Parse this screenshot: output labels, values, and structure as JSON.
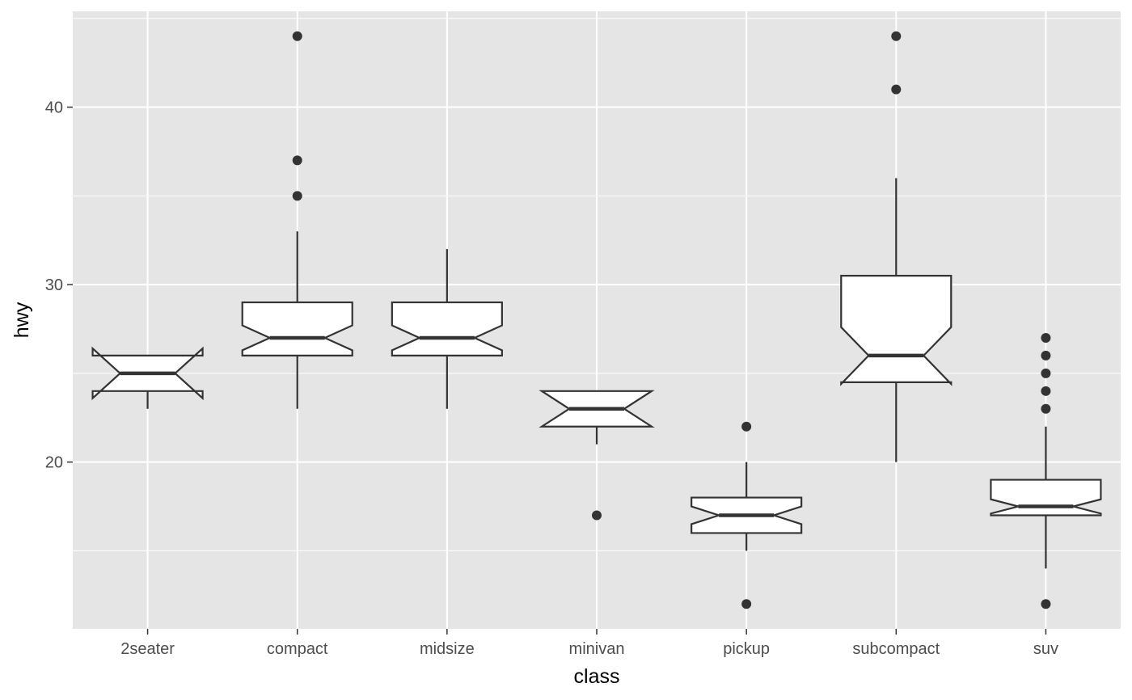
{
  "chart_data": {
    "type": "boxplot",
    "notched": true,
    "xlabel": "class",
    "ylabel": "hwy",
    "ylim": [
      10.6,
      45.4
    ],
    "yticks": [
      20,
      30,
      40
    ],
    "grid": true,
    "colors": {
      "panel": "#e5e5e5",
      "grid": "#ffffff",
      "box_fill": "#ffffff",
      "box_line": "#333333",
      "outlier": "#333333",
      "tick": "#4d4d4d"
    },
    "categories": [
      "2seater",
      "compact",
      "midsize",
      "minivan",
      "pickup",
      "subcompact",
      "suv"
    ],
    "boxes": [
      {
        "category": "2seater",
        "lower_whisker": 23,
        "q1": 24,
        "median": 25,
        "q3": 26,
        "upper_whisker": 26,
        "notch_low": 23.6,
        "notch_high": 26.4,
        "outliers": []
      },
      {
        "category": "compact",
        "lower_whisker": 23,
        "q1": 26,
        "median": 27,
        "q3": 29,
        "upper_whisker": 33,
        "notch_low": 26.3,
        "notch_high": 27.7,
        "outliers": [
          44,
          37,
          35
        ]
      },
      {
        "category": "midsize",
        "lower_whisker": 23,
        "q1": 26,
        "median": 27,
        "q3": 29,
        "upper_whisker": 32,
        "notch_low": 26.3,
        "notch_high": 27.7,
        "outliers": []
      },
      {
        "category": "minivan",
        "lower_whisker": 21,
        "q1": 22,
        "median": 23,
        "q3": 24,
        "upper_whisker": 24,
        "notch_low": 22.0,
        "notch_high": 24.0,
        "outliers": [
          17
        ]
      },
      {
        "category": "pickup",
        "lower_whisker": 15,
        "q1": 16,
        "median": 17,
        "q3": 18,
        "upper_whisker": 20,
        "notch_low": 16.5,
        "notch_high": 17.5,
        "outliers": [
          22,
          12
        ]
      },
      {
        "category": "subcompact",
        "lower_whisker": 20,
        "q1": 24.5,
        "median": 26,
        "q3": 30.5,
        "upper_whisker": 36,
        "notch_low": 24.4,
        "notch_high": 27.6,
        "outliers": [
          44,
          41
        ]
      },
      {
        "category": "suv",
        "lower_whisker": 14,
        "q1": 17,
        "median": 17.5,
        "q3": 19,
        "upper_whisker": 22,
        "notch_low": 17.1,
        "notch_high": 17.9,
        "outliers": [
          27,
          26,
          25,
          24,
          23,
          12
        ]
      }
    ]
  }
}
